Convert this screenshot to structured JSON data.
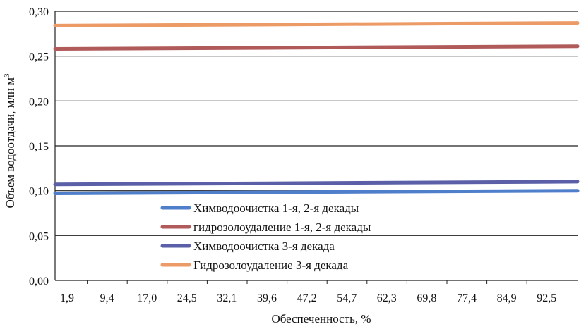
{
  "chart_data": {
    "type": "line",
    "title": "",
    "ylabel": "Объем водоотдачи, млн м",
    "ylabel_superscript": "3",
    "xlabel": "Обеспеченность, %",
    "ylim": [
      0,
      0.3
    ],
    "y_ticks": [
      "0,00",
      "0,05",
      "0,10",
      "0,15",
      "0,20",
      "0,25",
      "0,30"
    ],
    "x_ticks": [
      "1,9",
      "9,4",
      "17,0",
      "24,5",
      "32,1",
      "39,6",
      "47,2",
      "54,7",
      "62,3",
      "69,8",
      "77,4",
      "84,9",
      "92,5"
    ],
    "x_range": [
      1.9,
      98.1
    ],
    "grid": "horizontal",
    "legend_position": "bottom-left-inside",
    "series": [
      {
        "name": "Химводоочистка 1-я, 2-я декады",
        "color": "#4f7fca",
        "x": [
          1.9,
          98.1
        ],
        "values": [
          0.097,
          0.1
        ]
      },
      {
        "name": "гидрозолоудаление 1-я, 2-я декады",
        "color": "#b05a5a",
        "x": [
          1.9,
          98.1
        ],
        "values": [
          0.258,
          0.261
        ]
      },
      {
        "name": "Химводоочистка 3-я декада",
        "color": "#5a5fa8",
        "x": [
          1.9,
          98.1
        ],
        "values": [
          0.107,
          0.11
        ]
      },
      {
        "name": "Гидрозолоудаление 3-я декада",
        "color": "#ec9a66",
        "x": [
          1.9,
          98.1
        ],
        "values": [
          0.284,
          0.287
        ]
      }
    ]
  }
}
